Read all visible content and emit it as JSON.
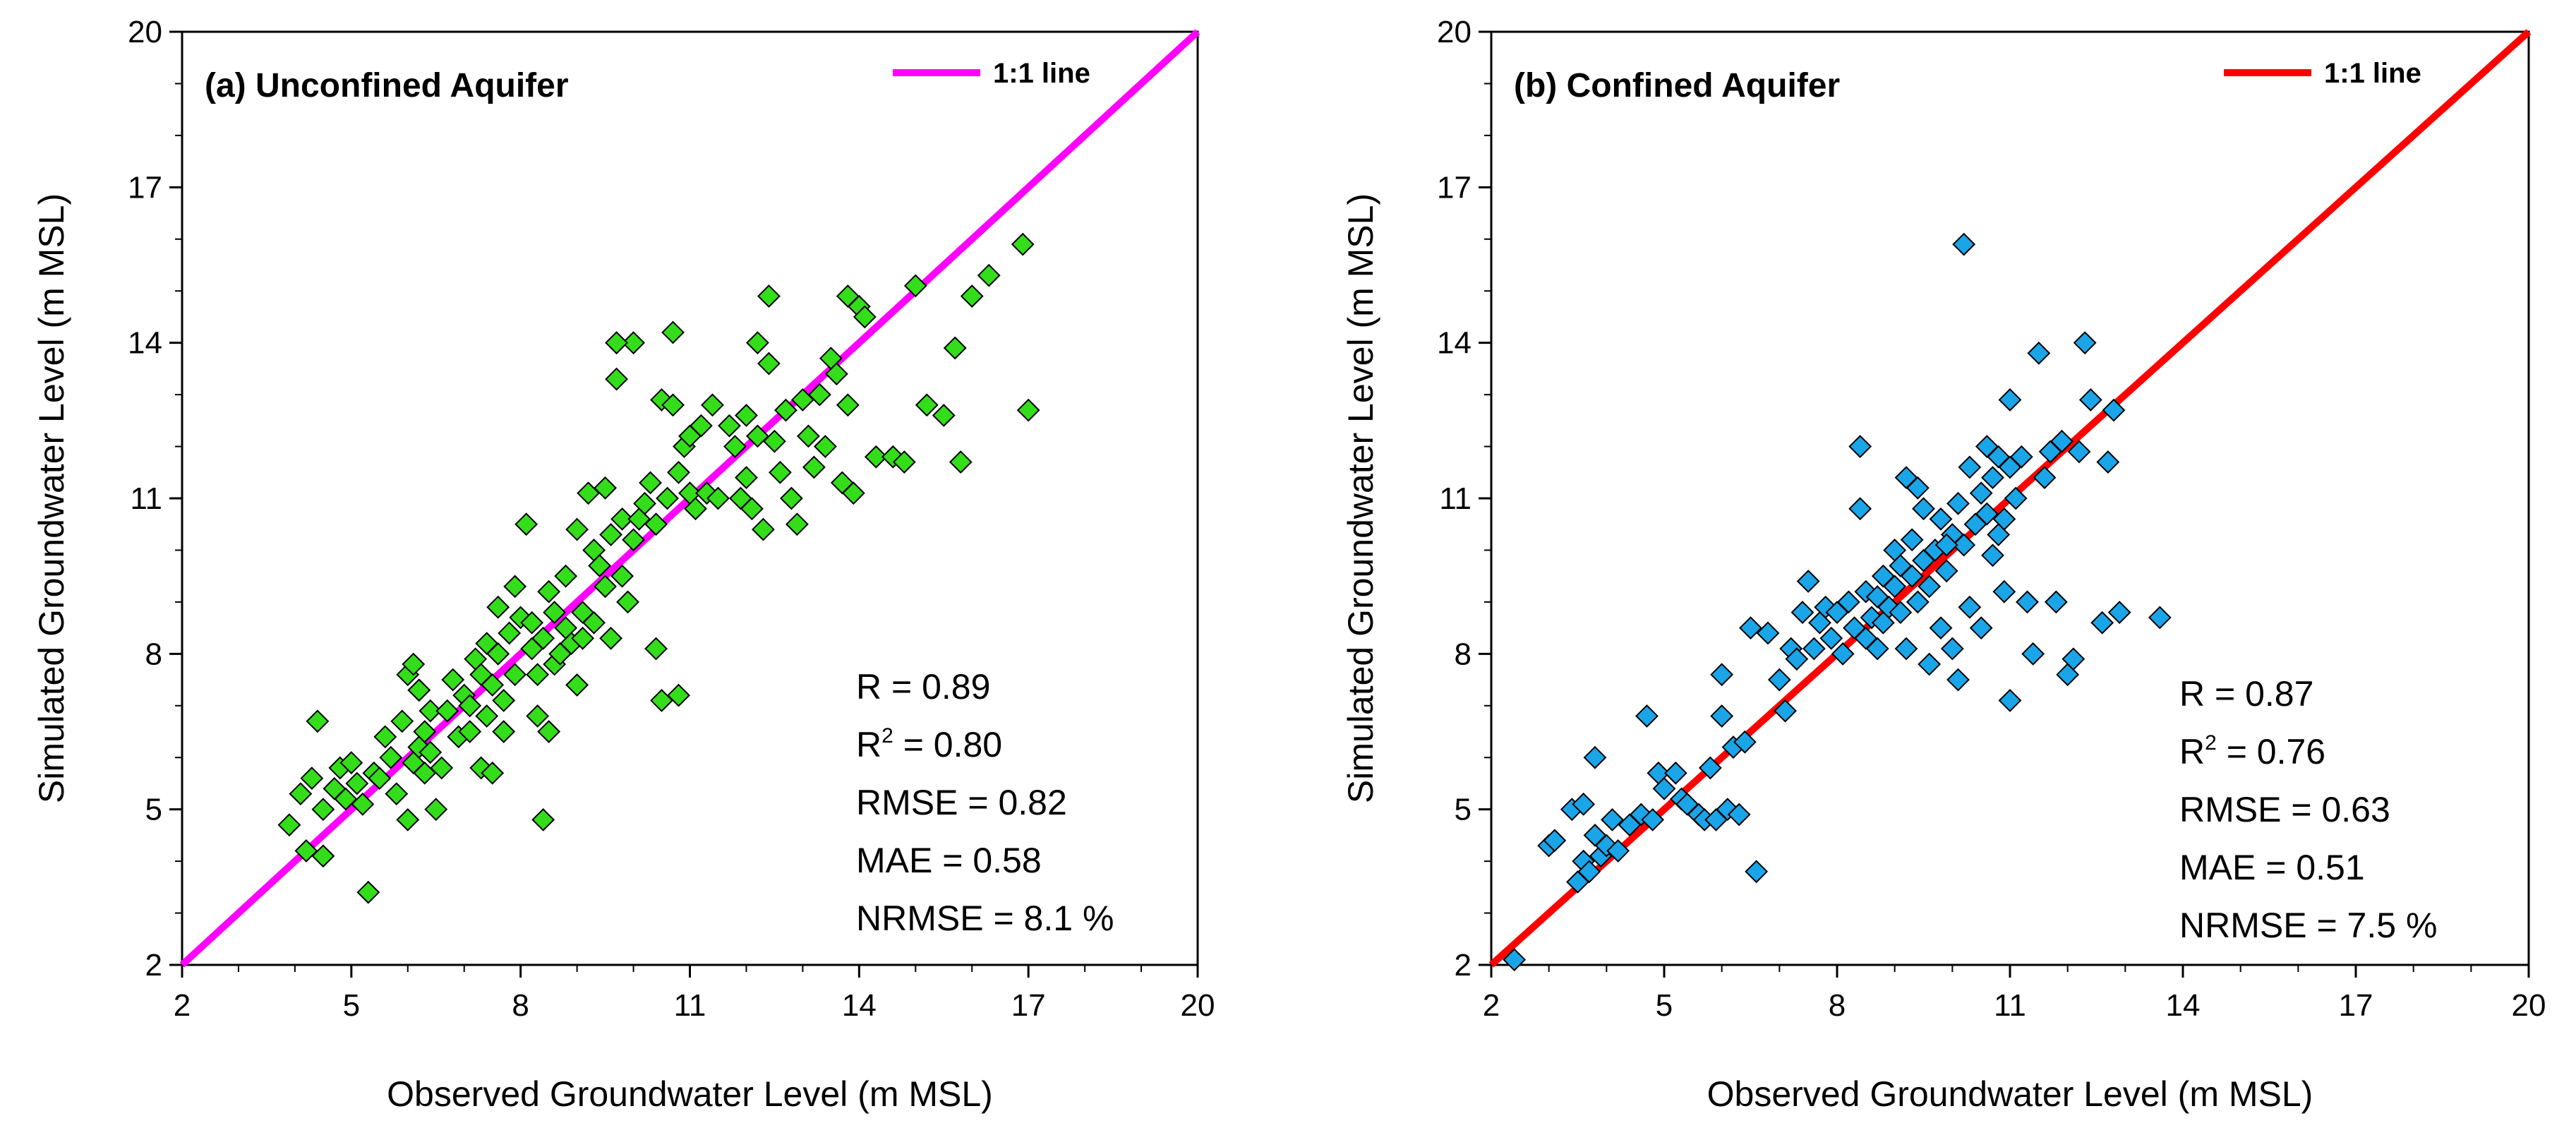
{
  "chart_data": [
    {
      "type": "scatter",
      "title": "(a) Unconfined Aquifer",
      "xlabel": "Observed Groundwater Level (m MSL)",
      "ylabel": "Simulated Groundwater Level (m MSL)",
      "xlim": [
        2,
        20
      ],
      "ylim": [
        2,
        20
      ],
      "xticks": [
        "2",
        "5",
        "8",
        "11",
        "14",
        "17",
        "20"
      ],
      "yticks": [
        "2",
        "5",
        "8",
        "11",
        "14",
        "17",
        "20"
      ],
      "grid": false,
      "legend": {
        "position": "top-right",
        "label": "1:1 line"
      },
      "line_color": "#ff00ff",
      "marker": "diamond",
      "marker_color": "#33dd1a",
      "stats": [
        {
          "label": "R = 0.89"
        },
        {
          "base": "R",
          "sup": "2",
          "rest": " = 0.80"
        },
        {
          "label": "RMSE = 0.82"
        },
        {
          "label": "MAE = 0.58"
        },
        {
          "label": "NRMSE = 8.1 %"
        }
      ],
      "points": [
        [
          3.9,
          4.7
        ],
        [
          4.1,
          5.3
        ],
        [
          4.2,
          4.2
        ],
        [
          4.3,
          5.6
        ],
        [
          4.4,
          6.7
        ],
        [
          4.5,
          4.1
        ],
        [
          4.5,
          5.0
        ],
        [
          4.7,
          5.4
        ],
        [
          4.8,
          5.8
        ],
        [
          4.9,
          5.2
        ],
        [
          5.0,
          5.9
        ],
        [
          5.1,
          5.5
        ],
        [
          5.2,
          5.1
        ],
        [
          5.3,
          3.4
        ],
        [
          5.4,
          5.7
        ],
        [
          5.5,
          5.6
        ],
        [
          5.6,
          6.4
        ],
        [
          5.7,
          6.0
        ],
        [
          5.8,
          5.3
        ],
        [
          5.9,
          6.7
        ],
        [
          6.0,
          7.6
        ],
        [
          6.0,
          4.8
        ],
        [
          6.1,
          5.9
        ],
        [
          6.1,
          7.8
        ],
        [
          6.2,
          6.2
        ],
        [
          6.2,
          7.3
        ],
        [
          6.3,
          5.7
        ],
        [
          6.3,
          6.5
        ],
        [
          6.4,
          6.9
        ],
        [
          6.4,
          6.1
        ],
        [
          6.5,
          5.0
        ],
        [
          6.6,
          5.8
        ],
        [
          6.7,
          6.9
        ],
        [
          6.8,
          7.5
        ],
        [
          6.9,
          6.4
        ],
        [
          7.0,
          7.2
        ],
        [
          7.1,
          7.0
        ],
        [
          7.1,
          6.5
        ],
        [
          7.2,
          7.9
        ],
        [
          7.3,
          5.8
        ],
        [
          7.3,
          7.6
        ],
        [
          7.4,
          6.8
        ],
        [
          7.4,
          8.2
        ],
        [
          7.5,
          5.7
        ],
        [
          7.5,
          7.4
        ],
        [
          7.6,
          8.0
        ],
        [
          7.7,
          7.1
        ],
        [
          7.7,
          6.5
        ],
        [
          7.8,
          8.4
        ],
        [
          7.9,
          9.3
        ],
        [
          7.9,
          7.6
        ],
        [
          8.0,
          8.7
        ],
        [
          8.1,
          10.5
        ],
        [
          8.2,
          8.1
        ],
        [
          8.2,
          8.6
        ],
        [
          8.3,
          7.6
        ],
        [
          8.3,
          6.8
        ],
        [
          8.4,
          4.8
        ],
        [
          8.4,
          8.3
        ],
        [
          8.5,
          6.5
        ],
        [
          8.5,
          9.2
        ],
        [
          8.6,
          7.8
        ],
        [
          8.6,
          8.8
        ],
        [
          8.7,
          8.0
        ],
        [
          8.8,
          8.5
        ],
        [
          8.8,
          9.5
        ],
        [
          8.9,
          8.2
        ],
        [
          9.0,
          7.4
        ],
        [
          9.0,
          10.4
        ],
        [
          9.1,
          8.3
        ],
        [
          9.1,
          8.8
        ],
        [
          9.2,
          11.1
        ],
        [
          9.3,
          10.0
        ],
        [
          9.3,
          8.6
        ],
        [
          9.4,
          9.7
        ],
        [
          9.5,
          9.3
        ],
        [
          9.5,
          11.2
        ],
        [
          9.6,
          8.3
        ],
        [
          9.6,
          10.3
        ],
        [
          9.7,
          13.3
        ],
        [
          9.7,
          14.0
        ],
        [
          9.8,
          9.5
        ],
        [
          9.8,
          10.6
        ],
        [
          9.9,
          9.0
        ],
        [
          10.0,
          14.0
        ],
        [
          10.0,
          10.2
        ],
        [
          10.1,
          10.6
        ],
        [
          10.2,
          10.9
        ],
        [
          10.3,
          11.3
        ],
        [
          10.4,
          8.1
        ],
        [
          10.4,
          10.5
        ],
        [
          10.5,
          7.1
        ],
        [
          10.5,
          12.9
        ],
        [
          10.6,
          11.0
        ],
        [
          10.7,
          14.2
        ],
        [
          10.7,
          12.8
        ],
        [
          10.8,
          7.2
        ],
        [
          10.8,
          11.5
        ],
        [
          10.9,
          12.0
        ],
        [
          11.0,
          11.1
        ],
        [
          11.0,
          12.2
        ],
        [
          11.1,
          10.8
        ],
        [
          11.2,
          12.4
        ],
        [
          11.3,
          11.1
        ],
        [
          11.4,
          12.8
        ],
        [
          11.5,
          11.0
        ],
        [
          11.7,
          12.4
        ],
        [
          11.8,
          12.0
        ],
        [
          11.9,
          11.0
        ],
        [
          12.0,
          12.6
        ],
        [
          12.0,
          11.4
        ],
        [
          12.1,
          10.8
        ],
        [
          12.2,
          14.0
        ],
        [
          12.2,
          12.2
        ],
        [
          12.3,
          10.4
        ],
        [
          12.4,
          14.9
        ],
        [
          12.4,
          13.6
        ],
        [
          12.5,
          12.1
        ],
        [
          12.6,
          11.5
        ],
        [
          12.7,
          12.7
        ],
        [
          12.8,
          11.0
        ],
        [
          12.9,
          10.5
        ],
        [
          13.0,
          12.9
        ],
        [
          13.1,
          12.2
        ],
        [
          13.2,
          11.6
        ],
        [
          13.3,
          13.0
        ],
        [
          13.4,
          12.0
        ],
        [
          13.5,
          13.7
        ],
        [
          13.6,
          13.4
        ],
        [
          13.7,
          11.3
        ],
        [
          13.8,
          14.9
        ],
        [
          13.8,
          12.8
        ],
        [
          13.9,
          11.1
        ],
        [
          14.0,
          14.7
        ],
        [
          14.3,
          11.8
        ],
        [
          14.6,
          11.8
        ],
        [
          14.8,
          11.7
        ],
        [
          15.0,
          15.1
        ],
        [
          15.2,
          12.8
        ],
        [
          15.5,
          12.6
        ],
        [
          15.7,
          13.9
        ],
        [
          15.8,
          11.7
        ],
        [
          16.0,
          14.9
        ],
        [
          16.3,
          15.3
        ],
        [
          16.9,
          15.9
        ],
        [
          17.0,
          12.7
        ],
        [
          14.1,
          14.5
        ],
        [
          9.7,
          14.0
        ],
        [
          6.2,
          7.3
        ],
        [
          7.6,
          8.9
        ]
      ]
    },
    {
      "type": "scatter",
      "title": "(b) Confined Aquifer",
      "xlabel": "Observed Groundwater Level (m MSL)",
      "ylabel": "Simulated Groundwater Level (m MSL)",
      "xlim": [
        2,
        20
      ],
      "ylim": [
        2,
        20
      ],
      "xticks": [
        "2",
        "5",
        "8",
        "11",
        "14",
        "17",
        "20"
      ],
      "yticks": [
        "2",
        "5",
        "8",
        "11",
        "14",
        "17",
        "20"
      ],
      "grid": false,
      "legend": {
        "position": "top-right",
        "label": "1:1 line"
      },
      "line_color": "#ff0000",
      "marker": "diamond",
      "marker_color": "#1aa5e8",
      "stats": [
        {
          "label": "R = 0.87"
        },
        {
          "base": "R",
          "sup": "2",
          "rest": " = 0.76"
        },
        {
          "label": "RMSE = 0.63"
        },
        {
          "label": "MAE = 0.51"
        },
        {
          "label": "NRMSE = 7.5 %"
        }
      ],
      "points": [
        [
          2.4,
          2.1
        ],
        [
          3.0,
          4.3
        ],
        [
          3.1,
          4.4
        ],
        [
          3.4,
          5.0
        ],
        [
          3.5,
          3.6
        ],
        [
          3.6,
          4.0
        ],
        [
          3.6,
          5.1
        ],
        [
          3.7,
          3.8
        ],
        [
          3.8,
          6.0
        ],
        [
          3.8,
          4.5
        ],
        [
          3.9,
          4.1
        ],
        [
          4.0,
          4.3
        ],
        [
          4.1,
          4.8
        ],
        [
          4.2,
          4.2
        ],
        [
          4.4,
          4.7
        ],
        [
          4.6,
          4.9
        ],
        [
          4.7,
          6.8
        ],
        [
          4.8,
          4.8
        ],
        [
          4.9,
          5.7
        ],
        [
          5.0,
          5.4
        ],
        [
          5.2,
          5.7
        ],
        [
          5.3,
          5.2
        ],
        [
          5.4,
          5.1
        ],
        [
          5.6,
          4.9
        ],
        [
          5.7,
          4.8
        ],
        [
          5.8,
          5.8
        ],
        [
          5.9,
          4.8
        ],
        [
          6.0,
          6.8
        ],
        [
          6.0,
          7.6
        ],
        [
          6.1,
          5.0
        ],
        [
          6.2,
          6.2
        ],
        [
          6.3,
          4.9
        ],
        [
          6.4,
          6.3
        ],
        [
          6.5,
          8.5
        ],
        [
          6.6,
          3.8
        ],
        [
          6.8,
          8.4
        ],
        [
          7.0,
          7.5
        ],
        [
          7.1,
          6.9
        ],
        [
          7.2,
          8.1
        ],
        [
          7.3,
          7.9
        ],
        [
          7.4,
          8.8
        ],
        [
          7.5,
          9.4
        ],
        [
          7.6,
          8.1
        ],
        [
          7.7,
          8.6
        ],
        [
          7.8,
          8.9
        ],
        [
          7.9,
          8.3
        ],
        [
          8.0,
          8.8
        ],
        [
          8.1,
          8.0
        ],
        [
          8.2,
          9.0
        ],
        [
          8.3,
          8.5
        ],
        [
          8.4,
          12.0
        ],
        [
          8.4,
          10.8
        ],
        [
          8.5,
          9.2
        ],
        [
          8.5,
          8.3
        ],
        [
          8.6,
          8.7
        ],
        [
          8.7,
          9.1
        ],
        [
          8.7,
          8.1
        ],
        [
          8.8,
          9.5
        ],
        [
          8.8,
          8.6
        ],
        [
          8.9,
          8.9
        ],
        [
          9.0,
          9.3
        ],
        [
          9.0,
          10.0
        ],
        [
          9.1,
          8.8
        ],
        [
          9.1,
          9.7
        ],
        [
          9.2,
          11.4
        ],
        [
          9.2,
          8.1
        ],
        [
          9.3,
          9.5
        ],
        [
          9.3,
          10.2
        ],
        [
          9.4,
          9.0
        ],
        [
          9.4,
          11.2
        ],
        [
          9.5,
          9.8
        ],
        [
          9.5,
          10.8
        ],
        [
          9.6,
          7.8
        ],
        [
          9.6,
          9.3
        ],
        [
          9.7,
          10.0
        ],
        [
          9.8,
          8.5
        ],
        [
          9.8,
          10.6
        ],
        [
          9.9,
          9.6
        ],
        [
          10.0,
          10.3
        ],
        [
          10.0,
          8.1
        ],
        [
          10.1,
          7.5
        ],
        [
          10.1,
          10.9
        ],
        [
          10.2,
          15.9
        ],
        [
          10.2,
          10.1
        ],
        [
          10.3,
          8.9
        ],
        [
          10.3,
          11.6
        ],
        [
          10.4,
          10.5
        ],
        [
          10.5,
          8.5
        ],
        [
          10.5,
          11.1
        ],
        [
          10.6,
          10.7
        ],
        [
          10.7,
          11.4
        ],
        [
          10.7,
          9.9
        ],
        [
          10.8,
          10.3
        ],
        [
          10.8,
          11.8
        ],
        [
          10.9,
          9.2
        ],
        [
          10.9,
          10.6
        ],
        [
          11.0,
          12.9
        ],
        [
          11.0,
          7.1
        ],
        [
          11.1,
          11.0
        ],
        [
          11.2,
          11.8
        ],
        [
          11.3,
          9.0
        ],
        [
          11.4,
          8.0
        ],
        [
          11.5,
          13.8
        ],
        [
          11.6,
          11.4
        ],
        [
          11.7,
          11.9
        ],
        [
          11.8,
          9.0
        ],
        [
          11.9,
          12.1
        ],
        [
          12.0,
          7.6
        ],
        [
          12.1,
          7.9
        ],
        [
          12.2,
          11.9
        ],
        [
          12.3,
          14.0
        ],
        [
          12.4,
          12.9
        ],
        [
          12.6,
          8.6
        ],
        [
          12.7,
          11.7
        ],
        [
          12.8,
          12.7
        ],
        [
          12.9,
          8.8
        ],
        [
          13.6,
          8.7
        ],
        [
          11.0,
          11.6
        ],
        [
          10.6,
          12.0
        ],
        [
          9.9,
          10.1
        ]
      ]
    }
  ]
}
